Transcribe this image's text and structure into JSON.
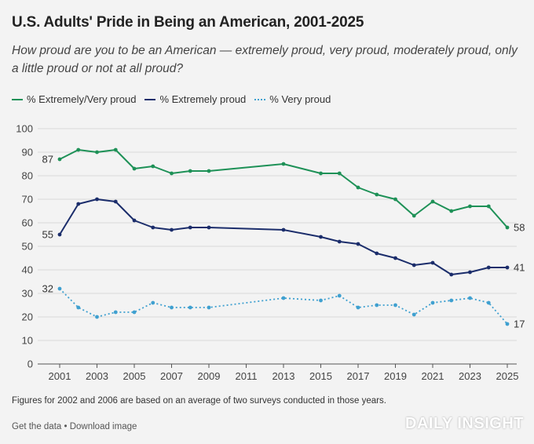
{
  "title": "U.S. Adults' Pride in Being an American, 2001-2025",
  "subtitle": "How proud are you to be an American — extremely proud, very proud, moderately proud, only a little proud or not at all proud?",
  "note": "Figures for 2002 and 2006 are based on an average of two surveys conducted in those years.",
  "footer": {
    "get_data": "Get the data",
    "separator": " • ",
    "download": "Download image"
  },
  "watermark": "DAILY INSIGHT",
  "colors": {
    "green": "#1e9157",
    "navy": "#1b2d6b",
    "lightblue": "#3fa0d0",
    "grid": "#d9d9d9"
  },
  "chart_data": {
    "type": "line",
    "title": "U.S. Adults' Pride in Being an American, 2001-2025",
    "xlabel": "",
    "ylabel": "",
    "ylim": [
      0,
      100
    ],
    "xlim": [
      2001,
      2025
    ],
    "yticks": [
      0,
      10,
      20,
      30,
      40,
      50,
      60,
      70,
      80,
      90,
      100
    ],
    "xticks": [
      2001,
      2003,
      2005,
      2007,
      2009,
      2011,
      2013,
      2015,
      2017,
      2019,
      2021,
      2023,
      2025
    ],
    "grid": true,
    "legend": "top-left",
    "series": [
      {
        "name": "% Extremely/Very proud",
        "style": "solid",
        "color": "#1e9157",
        "points": [
          [
            2001,
            87
          ],
          [
            2002,
            91
          ],
          [
            2003,
            90
          ],
          [
            2004,
            91
          ],
          [
            2005,
            83
          ],
          [
            2006,
            84
          ],
          [
            2007,
            81
          ],
          [
            2008,
            82
          ],
          [
            2009,
            82
          ],
          [
            2013,
            85
          ],
          [
            2015,
            81
          ],
          [
            2016,
            81
          ],
          [
            2017,
            75
          ],
          [
            2018,
            72
          ],
          [
            2019,
            70
          ],
          [
            2020,
            63
          ],
          [
            2021,
            69
          ],
          [
            2022,
            65
          ],
          [
            2023,
            67
          ],
          [
            2024,
            67
          ],
          [
            2025,
            58
          ]
        ],
        "start_label": "87",
        "end_label": "58"
      },
      {
        "name": "% Extremely proud",
        "style": "solid",
        "color": "#1b2d6b",
        "points": [
          [
            2001,
            55
          ],
          [
            2002,
            68
          ],
          [
            2003,
            70
          ],
          [
            2004,
            69
          ],
          [
            2005,
            61
          ],
          [
            2006,
            58
          ],
          [
            2007,
            57
          ],
          [
            2008,
            58
          ],
          [
            2009,
            58
          ],
          [
            2013,
            57
          ],
          [
            2015,
            54
          ],
          [
            2016,
            52
          ],
          [
            2017,
            51
          ],
          [
            2018,
            47
          ],
          [
            2019,
            45
          ],
          [
            2020,
            42
          ],
          [
            2021,
            43
          ],
          [
            2022,
            38
          ],
          [
            2023,
            39
          ],
          [
            2024,
            41
          ],
          [
            2025,
            41
          ]
        ],
        "start_label": "55",
        "end_label": "41"
      },
      {
        "name": "% Very proud",
        "style": "dotted",
        "color": "#3fa0d0",
        "points": [
          [
            2001,
            32
          ],
          [
            2002,
            24
          ],
          [
            2003,
            20
          ],
          [
            2004,
            22
          ],
          [
            2005,
            22
          ],
          [
            2006,
            26
          ],
          [
            2007,
            24
          ],
          [
            2008,
            24
          ],
          [
            2009,
            24
          ],
          [
            2013,
            28
          ],
          [
            2015,
            27
          ],
          [
            2016,
            29
          ],
          [
            2017,
            24
          ],
          [
            2018,
            25
          ],
          [
            2019,
            25
          ],
          [
            2020,
            21
          ],
          [
            2021,
            26
          ],
          [
            2022,
            27
          ],
          [
            2023,
            28
          ],
          [
            2024,
            26
          ],
          [
            2025,
            17
          ]
        ],
        "start_label": "32",
        "end_label": "17"
      }
    ]
  }
}
